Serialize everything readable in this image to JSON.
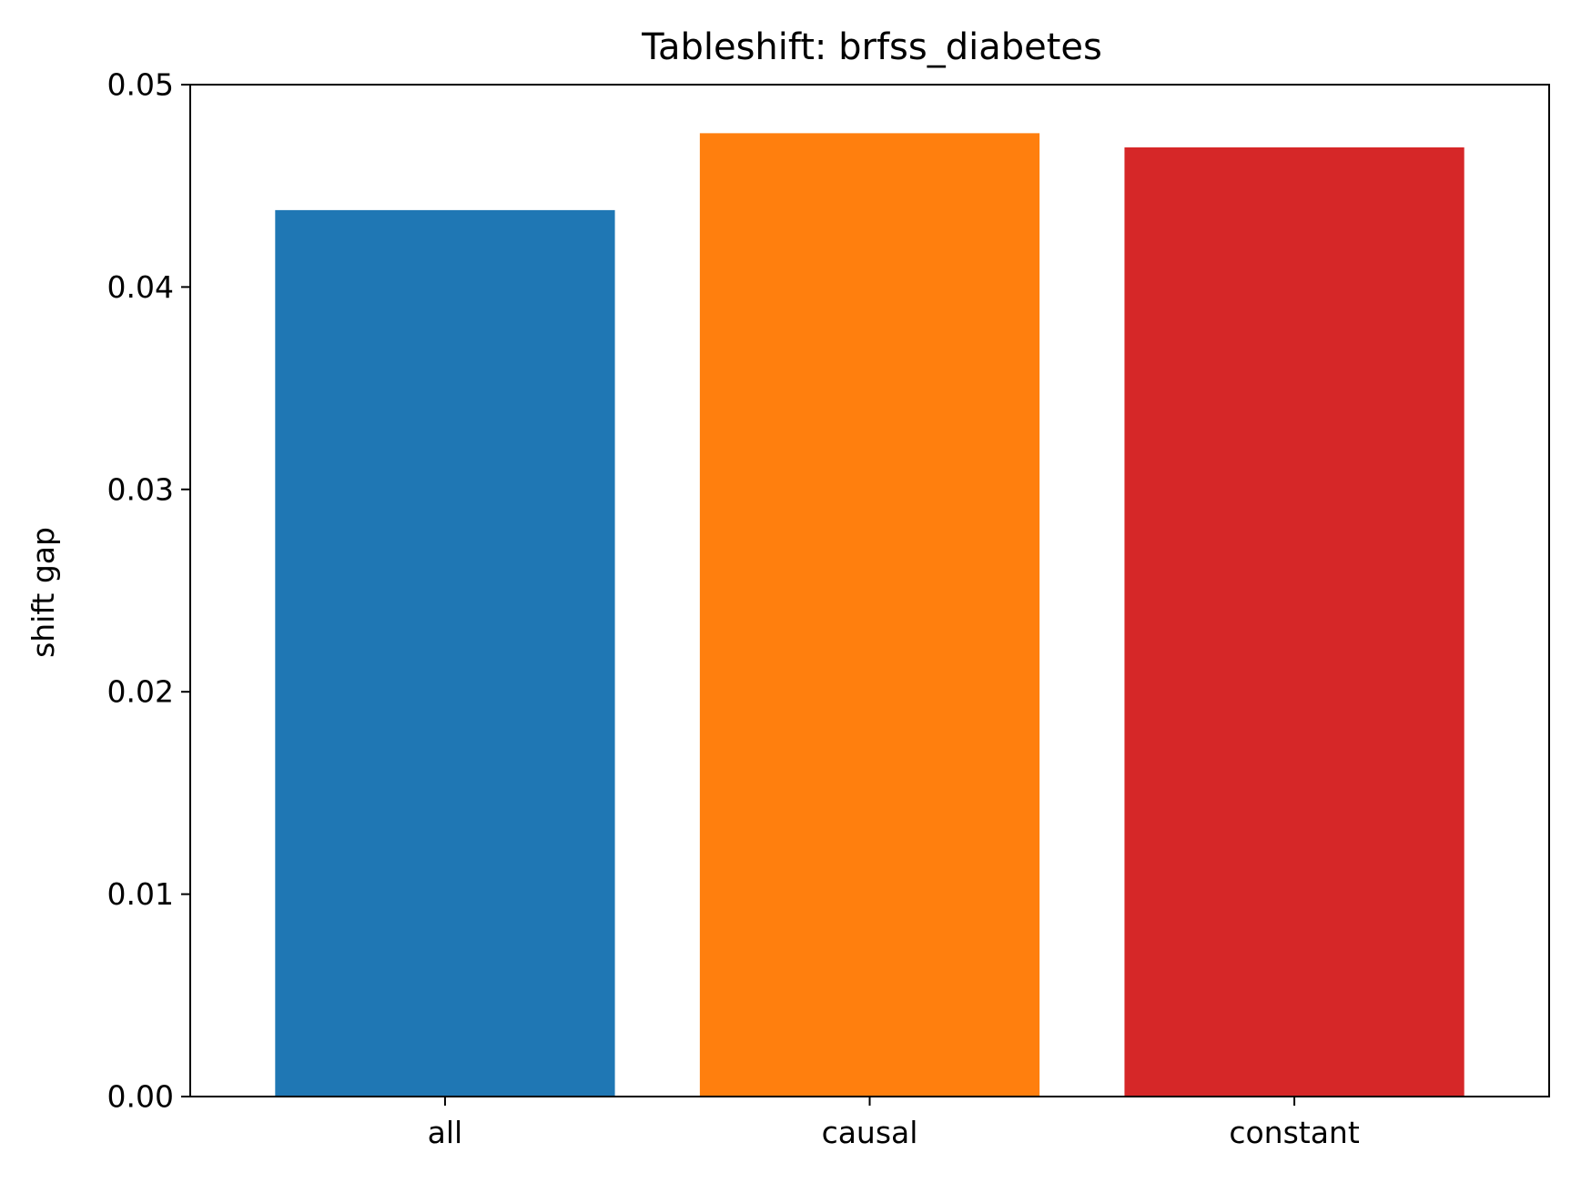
{
  "chart_data": {
    "type": "bar",
    "title": "Tableshift: brfss_diabetes",
    "xlabel": "",
    "ylabel": "shift gap",
    "categories": [
      "all",
      "causal",
      "constant"
    ],
    "values": [
      0.0438,
      0.0476,
      0.0469
    ],
    "colors": [
      "#1f77b4",
      "#ff7f0e",
      "#d62728"
    ],
    "ylim": [
      0,
      0.05
    ],
    "yticks": [
      0.0,
      0.01,
      0.02,
      0.03,
      0.04,
      0.05
    ],
    "ytick_labels": [
      "0.00",
      "0.01",
      "0.02",
      "0.03",
      "0.04",
      "0.05"
    ],
    "grid": false,
    "legend": "none"
  }
}
